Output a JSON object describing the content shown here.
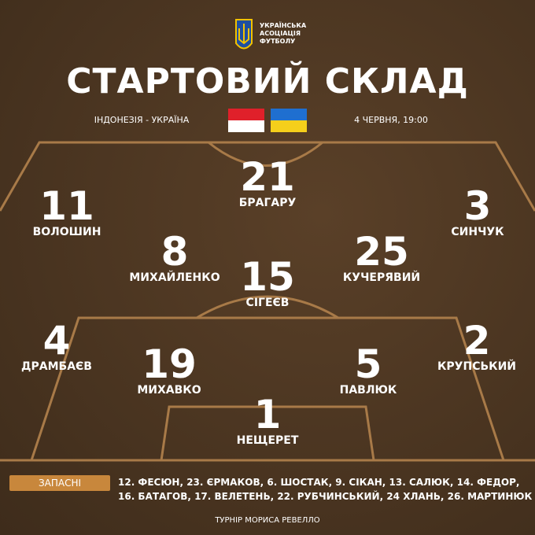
{
  "header": {
    "logo_lines": [
      "УКРАЇНСЬКА",
      "АСОЦІАЦІЯ",
      "ФУТБОЛУ"
    ],
    "title": "СТАРТОВИЙ СКЛАД",
    "match": "ІНДОНЕЗІЯ - УКРАЇНА",
    "date": "4 ЧЕРВНЯ, 19:00"
  },
  "players": [
    {
      "number": 21,
      "name": "БРАГАРУ"
    },
    {
      "number": 11,
      "name": "ВОЛОШИН"
    },
    {
      "number": 3,
      "name": "СИНЧУК"
    },
    {
      "number": 8,
      "name": "МИХАЙЛЕНКО"
    },
    {
      "number": 25,
      "name": "КУЧЕРЯВИЙ"
    },
    {
      "number": 15,
      "name": "СІГЕЄВ"
    },
    {
      "number": 4,
      "name": "ДРАМБАЄВ"
    },
    {
      "number": 2,
      "name": "КРУПСЬКИЙ"
    },
    {
      "number": 19,
      "name": "МИХАВКО"
    },
    {
      "number": 5,
      "name": "ПАВЛЮК"
    },
    {
      "number": 1,
      "name": "НЕЩЕРЕТ"
    }
  ],
  "substitutes": {
    "label": "ЗАПАСНІ",
    "lines": [
      "12. ФЕСЮН, 23. ЄРМАКОВ, 6. ШОСТАК, 9. СІКАН, 13. САЛЮК, 14. ФЕДОР,",
      "16. БАТАГОВ, 17. ВЕЛЕТЕНЬ, 22. РУБЧИНСЬКИЙ, 24 ХЛАНЬ, 26. МАРТИНЮК"
    ]
  },
  "footer": "ТУРНІР МОРИСА РЕВЕЛЛО"
}
